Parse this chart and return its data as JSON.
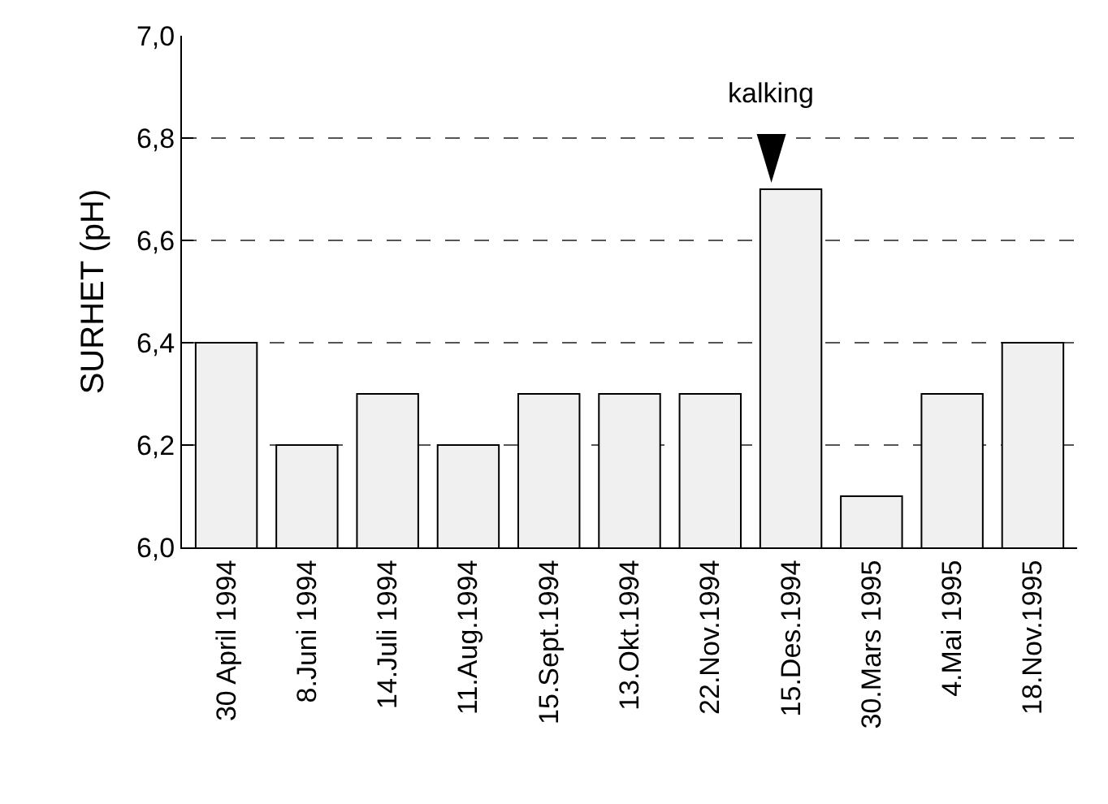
{
  "chart_data": {
    "type": "bar",
    "ylabel": "SURHET (pH)",
    "categories": [
      "30 April 1994",
      "8.Juni 1994",
      "14.Juli 1994",
      "11.Aug.1994",
      "15.Sept.1994",
      "13.Okt.1994",
      "22.Nov.1994",
      "15.Des.1994",
      "30.Mars 1995",
      "4.Mai 1995",
      "18.Nov.1995"
    ],
    "values": [
      6.4,
      6.2,
      6.3,
      6.2,
      6.3,
      6.3,
      6.3,
      6.7,
      6.1,
      6.3,
      6.4
    ],
    "color": "#f0f0f0",
    "ylim": [
      6.0,
      7.0
    ],
    "yticks": [
      {
        "value": 6.0,
        "label": "6,0"
      },
      {
        "value": 6.2,
        "label": "6,2"
      },
      {
        "value": 6.4,
        "label": "6,4"
      },
      {
        "value": 6.6,
        "label": "6,6"
      },
      {
        "value": 6.8,
        "label": "6,8"
      },
      {
        "value": 7.0,
        "label": "7,0"
      }
    ],
    "grid": "y",
    "line_style": "dashed",
    "annotations": [
      {
        "text": "kalking",
        "x": "15.Des.1994",
        "y": 6.7
      }
    ]
  }
}
